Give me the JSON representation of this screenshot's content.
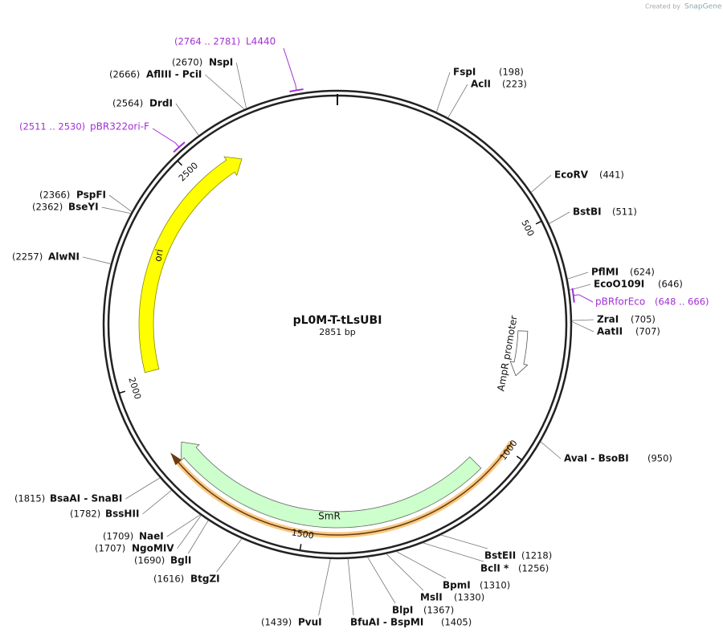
{
  "header": {
    "credit": "Created by",
    "brand": "SnapGene"
  },
  "plasmid": {
    "name": "pL0M-T-tLsUBI",
    "length": {
      "value": 2851,
      "label": "2851 bp"
    },
    "ticks": [
      500,
      1000,
      1500,
      2000,
      2500
    ]
  },
  "sites": [
    {
      "name": "FspI",
      "position": {
        "value": 198,
        "label": "(198)"
      }
    },
    {
      "name": "AclI",
      "position": {
        "value": 223,
        "label": "(223)"
      }
    },
    {
      "name": "EcoRV",
      "position": {
        "value": 441,
        "label": "(441)"
      }
    },
    {
      "name": "BstBI",
      "position": {
        "value": 511,
        "label": "(511)"
      }
    },
    {
      "name": "PflMI",
      "position": {
        "value": 624,
        "label": "(624)"
      }
    },
    {
      "name": "EcoO109I",
      "position": {
        "value": 646,
        "label": "(646)"
      }
    },
    {
      "name": "ZraI",
      "position": {
        "value": 705,
        "label": "(705)"
      }
    },
    {
      "name": "AatII",
      "position": {
        "value": 707,
        "label": "(707)"
      }
    },
    {
      "name": "AvaI - BsoBI",
      "position": {
        "value": 950,
        "label": "(950)"
      }
    },
    {
      "name": "BstEII",
      "position": {
        "value": 1218,
        "label": "(1218)"
      }
    },
    {
      "name": "BclI *",
      "position": {
        "value": 1256,
        "label": "(1256)"
      }
    },
    {
      "name": "BpmI",
      "position": {
        "value": 1310,
        "label": "(1310)"
      }
    },
    {
      "name": "MslI",
      "position": {
        "value": 1330,
        "label": "(1330)"
      }
    },
    {
      "name": "BlpI",
      "position": {
        "value": 1367,
        "label": "(1367)"
      }
    },
    {
      "name": "BfuAI - BspMI",
      "position": {
        "value": 1405,
        "label": "(1405)"
      }
    },
    {
      "name": "PvuI",
      "position": {
        "value": 1439,
        "label": "(1439)"
      }
    },
    {
      "name": "BtgZI",
      "position": {
        "value": 1616,
        "label": "(1616)"
      }
    },
    {
      "name": "BglI",
      "position": {
        "value": 1690,
        "label": "(1690)"
      }
    },
    {
      "name": "NgoMIV",
      "position": {
        "value": 1707,
        "label": "(1707)"
      }
    },
    {
      "name": "NaeI",
      "position": {
        "value": 1709,
        "label": "(1709)"
      }
    },
    {
      "name": "BssHII",
      "position": {
        "value": 1782,
        "label": "(1782)"
      }
    },
    {
      "name": "BsaAI - SnaBI",
      "position": {
        "value": 1815,
        "label": "(1815)"
      }
    },
    {
      "name": "AlwNI",
      "position": {
        "value": 2257,
        "label": "(2257)"
      }
    },
    {
      "name": "BseYI",
      "position": {
        "value": 2362,
        "label": "(2362)"
      }
    },
    {
      "name": "PspFI",
      "position": {
        "value": 2366,
        "label": "(2366)"
      }
    },
    {
      "name": "DrdI",
      "position": {
        "value": 2564,
        "label": "(2564)"
      }
    },
    {
      "name": "AflIII - PciI",
      "position": {
        "value": 2666,
        "label": "(2666)"
      }
    },
    {
      "name": "NspI",
      "position": {
        "value": 2670,
        "label": "(2670)"
      }
    }
  ],
  "primers": [
    {
      "name": "L4440",
      "start": 2764,
      "end": 2781,
      "range": "(2764 .. 2781)"
    },
    {
      "name": "pBR322ori-F",
      "start": 2511,
      "end": 2530,
      "range": "(2511 .. 2530)"
    },
    {
      "name": "pBRforEco",
      "start": 648,
      "end": 666,
      "range": "(648 .. 666)"
    }
  ],
  "features": [
    {
      "name": "ori"
    },
    {
      "name": "SmR"
    },
    {
      "name": "AmpR promoter"
    }
  ]
}
